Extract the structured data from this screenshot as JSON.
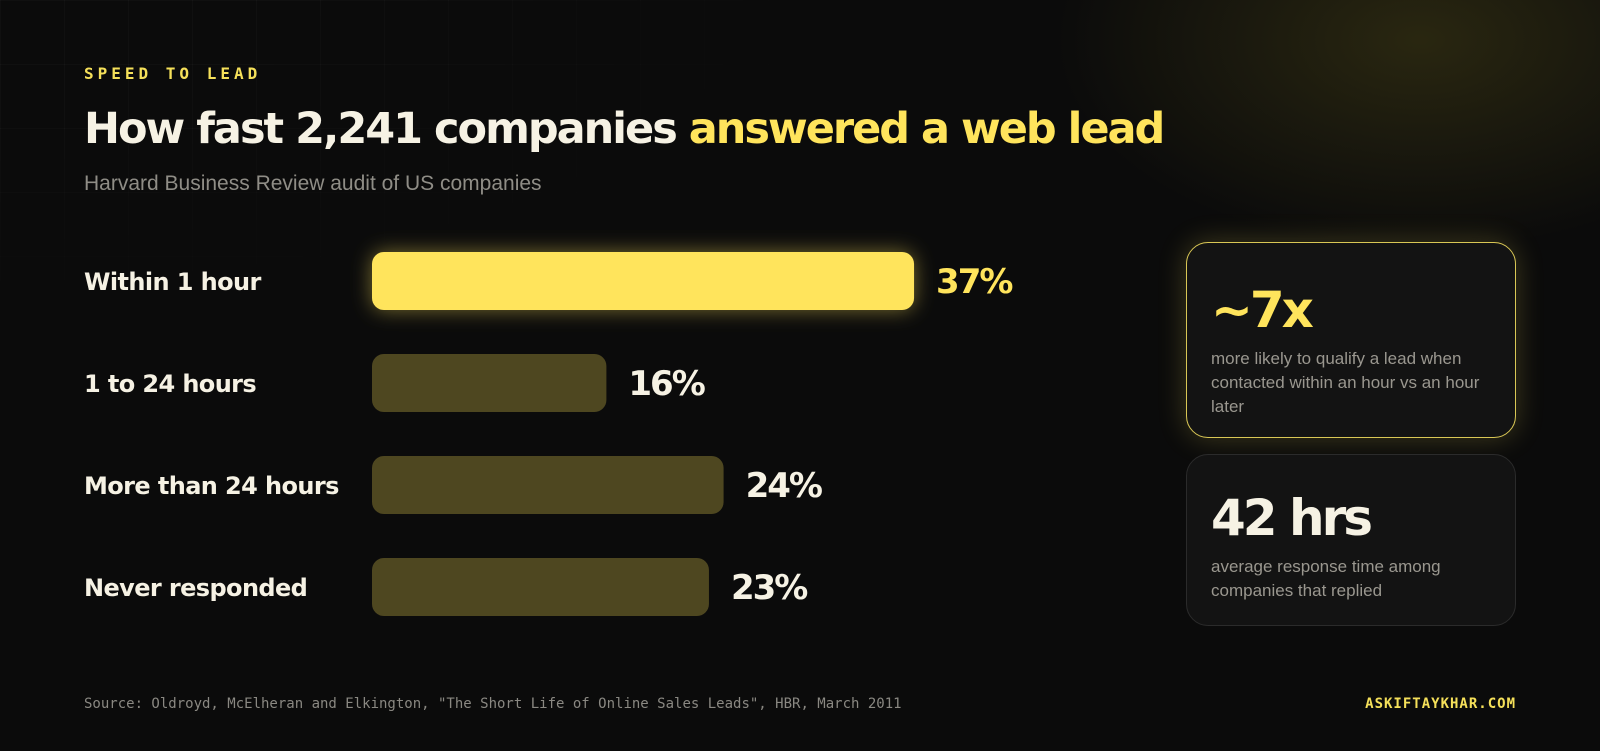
{
  "header": {
    "eyebrow": "SPEED TO LEAD",
    "title_main": "How fast 2,241 companies",
    "title_highlight": "answered a web lead",
    "subtitle": "Harvard Business Review audit of US companies"
  },
  "colors": {
    "accent": "#ffe45c",
    "bar_muted": "#4e4720",
    "text": "#f6f2e4"
  },
  "chart_data": {
    "type": "bar",
    "orientation": "horizontal",
    "categories": [
      "Within 1 hour",
      "1 to 24 hours",
      "More than 24 hours",
      "Never responded"
    ],
    "values": [
      37,
      16,
      24,
      23
    ],
    "value_labels": [
      "37%",
      "16%",
      "24%",
      "23%"
    ],
    "highlight_index": 0,
    "unit": "%",
    "grid": false
  },
  "stats": [
    {
      "value": "~7x",
      "description": "more likely to qualify a lead when contacted within an hour vs an hour later"
    },
    {
      "value": "42 hrs",
      "description": "average response time among companies that replied"
    }
  ],
  "footer": {
    "source": "Source: Oldroyd, McElheran and Elkington, \"The Short Life of Online Sales Leads\", HBR, March 2011",
    "brand": "ASKIFTAYKHAR.COM"
  }
}
